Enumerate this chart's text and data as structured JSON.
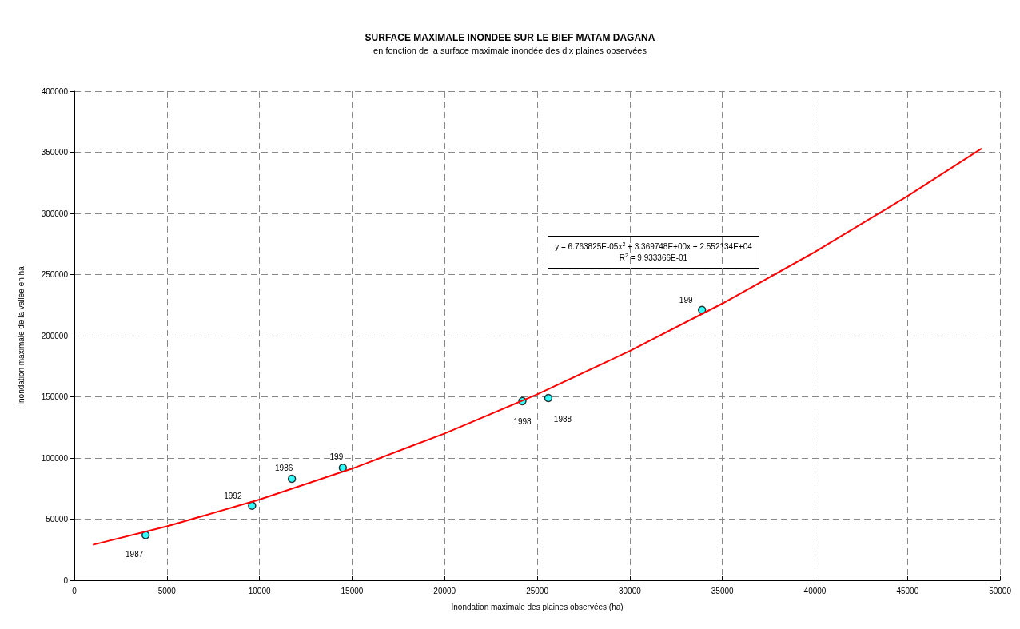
{
  "chart_data": {
    "type": "scatter",
    "title": "SURFACE MAXIMALE INONDEE SUR LE BIEF MATAM DAGANA",
    "subtitle": "en fonction de la surface maximale inondée des dix plaines observées",
    "xlabel": "Inondation maximale des plaines observées (ha)",
    "ylabel": "Inondation maximale de la vallée en ha",
    "xlim": [
      0,
      50000
    ],
    "xticks": [
      0,
      5000,
      10000,
      15000,
      20000,
      25000,
      30000,
      35000,
      40000,
      45000,
      50000
    ],
    "ylim": [
      0,
      400000
    ],
    "yticks": [
      0,
      50000,
      100000,
      150000,
      200000,
      250000,
      300000,
      350000,
      400000
    ],
    "grid": true,
    "marker": "circle",
    "annotations": [
      "y = 6.763825E-05x$^{2}$ + 3.369748E+00x + 2.552134E+04",
      "R$^{2}$ = 9.933366E-01",
      {
        "text": "1987",
        "x": 3850,
        "y": 37000
      },
      {
        "text": "1992",
        "x": 9600,
        "y": 61000
      },
      {
        "text": "1986",
        "x": 11750,
        "y": 83000
      },
      {
        "text": "199",
        "x": 14500,
        "y": 92000
      },
      {
        "text": "1998",
        "x": 24200,
        "y": 146500
      },
      {
        "text": "1988",
        "x": 25600,
        "y": 149000
      },
      {
        "text": "199",
        "x": 33900,
        "y": 221000
      }
    ],
    "series": [
      {
        "color": "#00ffff",
        "x": [
          3850,
          9600,
          11750,
          14500,
          24200,
          25600,
          33900
        ],
        "values": [
          37000,
          61000,
          83000,
          92000,
          146500,
          149000,
          221000
        ]
      },
      {
        "type": "line",
        "color": "#ff0000",
        "marker": "none",
        "x": [
          1000,
          5000,
          10000,
          15000,
          20000,
          25000,
          30000,
          35000,
          40000,
          45000,
          49000
        ],
        "values": [
          29000,
          44100,
          66000,
          91300,
          120000,
          152000,
          187500,
          226300,
          268500,
          314100,
          353000
        ]
      }
    ]
  }
}
